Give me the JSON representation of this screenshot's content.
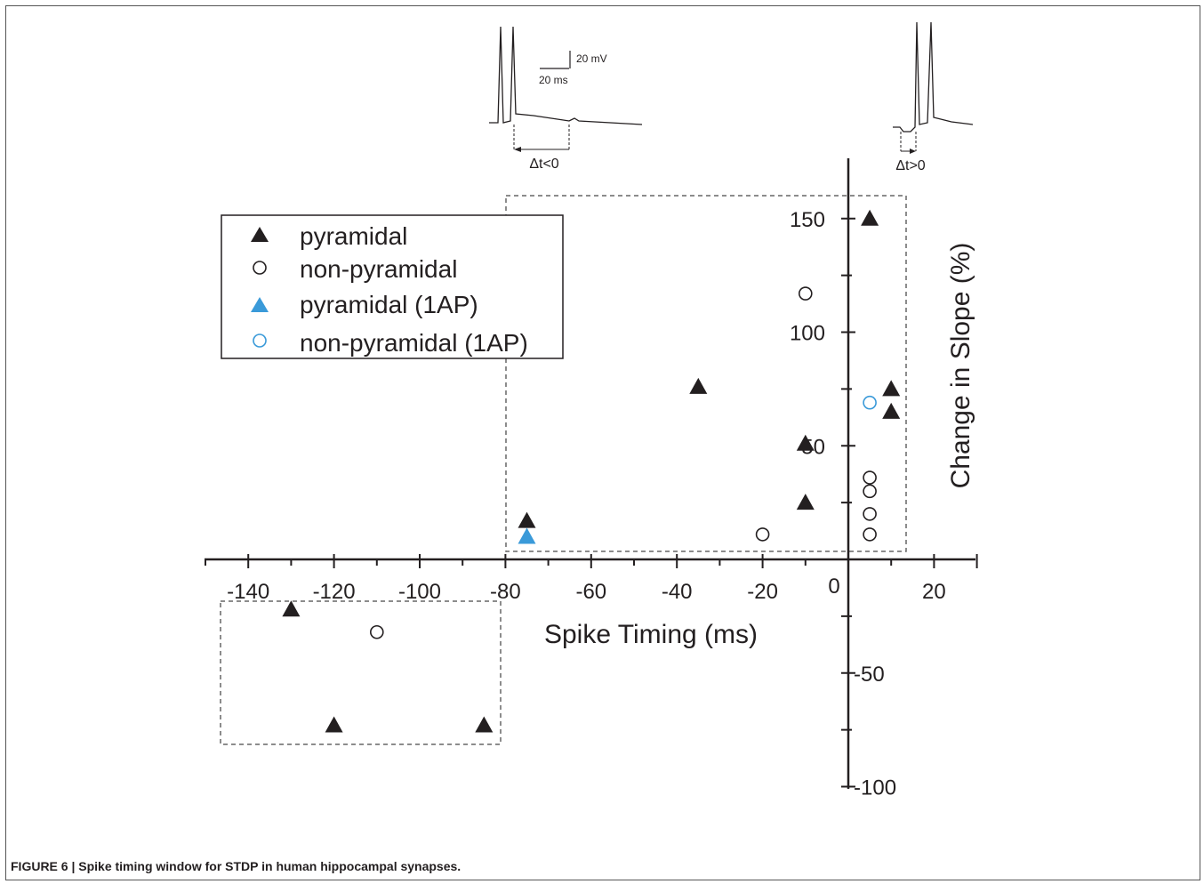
{
  "caption": {
    "label": "FIGURE 6 | Spike timing window for STDP in human hippocampal synapses."
  },
  "inset": {
    "scale_voltage": "20 mV",
    "scale_time": "20 ms",
    "label_neg": "Δt<0",
    "label_pos": "Δt>0"
  },
  "chart_data": {
    "type": "scatter",
    "title": "",
    "xlabel": "Spike Timing (ms)",
    "ylabel": "Change in Slope (%)",
    "xlim": [
      -148,
      30
    ],
    "ylim": [
      -100,
      162
    ],
    "x_ticks": [
      -140,
      -120,
      -100,
      -80,
      -60,
      -40,
      -20,
      0,
      20
    ],
    "y_ticks": [
      -100,
      -50,
      50,
      100,
      150
    ],
    "grid": false,
    "legend_position": "top-left",
    "colors": {
      "black": "#231f20",
      "blue": "#3a9ad9"
    },
    "series": [
      {
        "name": "pyramidal",
        "marker": "triangle-filled",
        "color": "#231f20",
        "points": [
          [
            5,
            150
          ],
          [
            -35,
            76
          ],
          [
            10,
            75
          ],
          [
            10,
            65
          ],
          [
            -10,
            51
          ],
          [
            -10,
            25
          ],
          [
            -75,
            17
          ],
          [
            -130,
            -22
          ],
          [
            -120,
            -73
          ],
          [
            -85,
            -73
          ]
        ]
      },
      {
        "name": "non-pyramidal",
        "marker": "circle-open",
        "color": "#231f20",
        "points": [
          [
            -10,
            117
          ],
          [
            5,
            36
          ],
          [
            5,
            30
          ],
          [
            5,
            20
          ],
          [
            5,
            11
          ],
          [
            -20,
            11
          ],
          [
            -110,
            -32
          ]
        ]
      },
      {
        "name": "pyramidal (1AP)",
        "marker": "triangle-filled",
        "color": "#3a9ad9",
        "points": [
          [
            -75,
            10
          ]
        ]
      },
      {
        "name": "non-pyramidal (1AP)",
        "marker": "circle-open",
        "color": "#3a9ad9",
        "points": [
          [
            5,
            69
          ]
        ]
      }
    ]
  }
}
